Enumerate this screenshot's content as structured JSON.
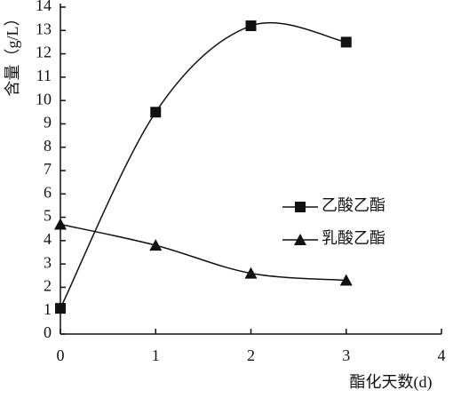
{
  "chart_data": {
    "type": "line",
    "x_label": "酯化天数(d)",
    "y_label": "含量（g/L）",
    "x": [
      0,
      1,
      2,
      3
    ],
    "xlim": [
      0,
      4
    ],
    "xticks": [
      0,
      1,
      2,
      3,
      4
    ],
    "ylim": [
      0,
      14
    ],
    "yticks": [
      0,
      1,
      2,
      3,
      4,
      5,
      6,
      7,
      8,
      9,
      10,
      11,
      12,
      13,
      14
    ],
    "smooth": true,
    "series": [
      {
        "name": "乙酸乙酯",
        "color": "#111111",
        "marker": "square",
        "values": [
          1.1,
          9.5,
          13.2,
          12.5
        ]
      },
      {
        "name": "乳酸乙酯",
        "color": "#111111",
        "marker": "triangle",
        "values": [
          4.7,
          3.8,
          2.6,
          2.3
        ]
      }
    ]
  }
}
